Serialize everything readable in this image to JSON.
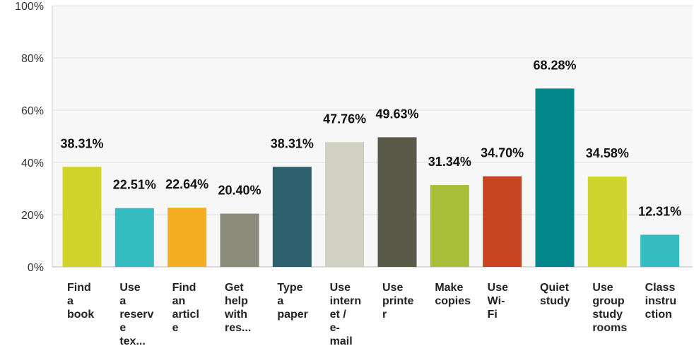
{
  "chart_data": {
    "type": "bar",
    "title": "",
    "xlabel": "",
    "ylabel": "",
    "ylim": [
      0,
      100
    ],
    "y_ticks": [
      "0%",
      "20%",
      "40%",
      "60%",
      "80%",
      "100%"
    ],
    "y_tick_values": [
      0,
      20,
      40,
      60,
      80,
      100
    ],
    "grid": true,
    "legend": "none",
    "categories": [
      "Find a book",
      "Use a reserve tex...",
      "Find an article",
      "Get help with res...",
      "Type a paper",
      "Use internet / e-mail",
      "Use printer",
      "Make copies",
      "Use Wi-Fi",
      "Quiet study",
      "Use group study rooms",
      "Class instruction"
    ],
    "category_lines": [
      [
        "Find",
        "a",
        "book"
      ],
      [
        "Use",
        "a",
        "reserv",
        "e",
        "tex..."
      ],
      [
        "Find",
        "an",
        "articl",
        "e"
      ],
      [
        "Get",
        "help",
        "with",
        "res..."
      ],
      [
        "Type",
        "a",
        "paper"
      ],
      [
        "Use",
        "intern",
        "et /",
        "e-",
        "mail"
      ],
      [
        "Use",
        "printe",
        "r"
      ],
      [
        "Make",
        "copies"
      ],
      [
        "Use",
        "Wi-",
        "Fi"
      ],
      [
        "Quiet",
        "study"
      ],
      [
        "Use",
        "group",
        "study",
        "rooms"
      ],
      [
        "Class",
        "instru",
        "ction"
      ]
    ],
    "values": [
      38.31,
      22.51,
      22.64,
      20.4,
      38.31,
      47.76,
      49.63,
      31.34,
      34.7,
      68.28,
      34.58,
      12.31
    ],
    "value_labels": [
      "38.31%",
      "22.51%",
      "22.64%",
      "20.40%",
      "38.31%",
      "47.76%",
      "49.63%",
      "31.34%",
      "34.70%",
      "68.28%",
      "34.58%",
      "12.31%"
    ],
    "colors": [
      "#d0d42a",
      "#35bcc0",
      "#f5ae22",
      "#8a8b7a",
      "#2e5f6c",
      "#d0d0c3",
      "#5a5a4b",
      "#a9bf3a",
      "#c8441e",
      "#02888a",
      "#cfd42e",
      "#35bcc0"
    ]
  }
}
